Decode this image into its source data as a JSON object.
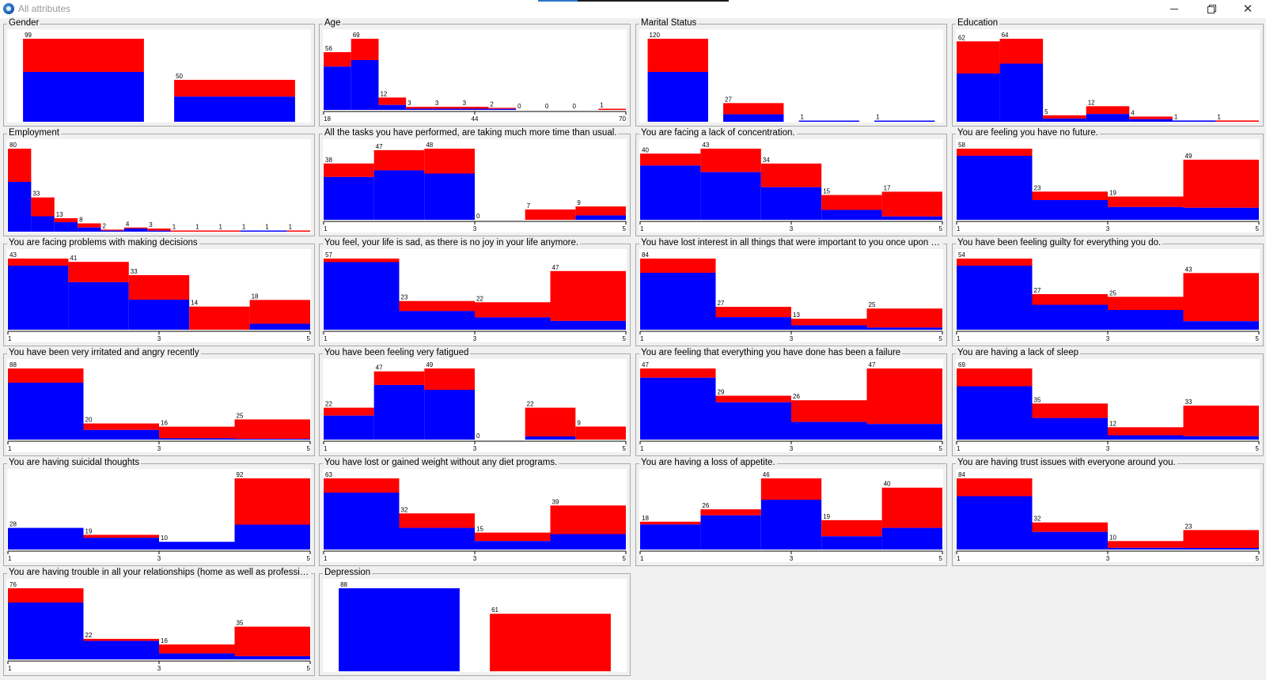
{
  "window": {
    "title": "All attributes"
  },
  "colors": {
    "series_a": "#0000ff",
    "series_b": "#ff0000"
  },
  "chart_data": [
    {
      "title": "Gender",
      "type": "bar",
      "stacked": true,
      "values": [
        99,
        50
      ],
      "fractions": [
        0.6,
        0.6
      ],
      "xticks": []
    },
    {
      "title": "Age",
      "type": "bar",
      "stacked": true,
      "values": [
        56,
        69,
        12,
        3,
        3,
        3,
        2,
        0,
        0,
        0,
        1
      ],
      "fractions": [
        0.75,
        0.7,
        0.4,
        0.4,
        0.4,
        0.4,
        0.5,
        0,
        0,
        0,
        0
      ],
      "xticks": [
        "18",
        "44",
        "70"
      ]
    },
    {
      "title": "Marital Status",
      "type": "bar",
      "stacked": true,
      "values": [
        120,
        27,
        1,
        1
      ],
      "fractions": [
        0.6,
        0.4,
        1,
        1
      ],
      "xticks": []
    },
    {
      "title": "Education",
      "type": "bar",
      "stacked": true,
      "values": [
        62,
        64,
        5,
        12,
        4,
        1,
        1
      ],
      "fractions": [
        0.6,
        0.7,
        0.5,
        0.5,
        0.5,
        1,
        0
      ],
      "xticks": []
    },
    {
      "title": "Employment",
      "type": "bar",
      "stacked": true,
      "values": [
        80,
        33,
        13,
        8,
        2,
        4,
        3,
        1,
        1,
        1,
        1,
        1,
        1
      ],
      "fractions": [
        0.6,
        0.45,
        0.7,
        0.5,
        0.5,
        0.75,
        0.33,
        0,
        0,
        0,
        1,
        1,
        0
      ],
      "xticks": []
    },
    {
      "title": "All the tasks you have performed, are taking much more time than usual.",
      "type": "bar",
      "stacked": true,
      "values": [
        38,
        47,
        48,
        0,
        7,
        9
      ],
      "fractions": [
        0.76,
        0.71,
        0.65,
        0,
        0,
        0.33
      ],
      "xticks": [
        "1",
        "3",
        "5"
      ]
    },
    {
      "title": "You are facing a lack of concentration.",
      "type": "bar",
      "stacked": true,
      "values": [
        40,
        43,
        34,
        15,
        17
      ],
      "fractions": [
        0.82,
        0.67,
        0.58,
        0.4,
        0.12
      ],
      "xticks": [
        "1",
        "3",
        "5"
      ]
    },
    {
      "title": "You are feeling you have no future.",
      "type": "bar",
      "stacked": true,
      "values": [
        58,
        23,
        19,
        49
      ],
      "fractions": [
        0.9,
        0.7,
        0.55,
        0.2
      ],
      "xticks": [
        "1",
        "3",
        "5"
      ]
    },
    {
      "title": "You are facing problems with making decisions",
      "type": "bar",
      "stacked": true,
      "values": [
        43,
        41,
        33,
        14,
        18
      ],
      "fractions": [
        0.9,
        0.7,
        0.55,
        0,
        0.2
      ],
      "xticks": [
        "1",
        "3",
        "5"
      ]
    },
    {
      "title": "You feel, your life is sad, as there is no joy in your life anymore.",
      "type": "bar",
      "stacked": true,
      "values": [
        57,
        23,
        22,
        47
      ],
      "fractions": [
        0.95,
        0.65,
        0.45,
        0.15
      ],
      "xticks": [
        "1",
        "3",
        "5"
      ]
    },
    {
      "title": "You have lost interest in all things that were important to you once upon a ti...",
      "type": "bar",
      "stacked": true,
      "values": [
        84,
        27,
        13,
        25
      ],
      "fractions": [
        0.8,
        0.55,
        0.4,
        0.1
      ],
      "xticks": [
        "1",
        "3",
        "5"
      ]
    },
    {
      "title": "You have been feeling guilty for everything you do.",
      "type": "bar",
      "stacked": true,
      "values": [
        54,
        27,
        25,
        43
      ],
      "fractions": [
        0.9,
        0.7,
        0.6,
        0.15
      ],
      "xticks": [
        "1",
        "3",
        "5"
      ]
    },
    {
      "title": "You have been very irritated and angry recently",
      "type": "bar",
      "stacked": true,
      "values": [
        88,
        20,
        16,
        25
      ],
      "fractions": [
        0.8,
        0.6,
        0.1,
        0.04
      ],
      "xticks": [
        "1",
        "3",
        "5"
      ]
    },
    {
      "title": "You have been feeling very fatigued",
      "type": "bar",
      "stacked": true,
      "values": [
        22,
        47,
        49,
        0,
        22,
        9
      ],
      "fractions": [
        0.75,
        0.8,
        0.7,
        0,
        0.1,
        0
      ],
      "xticks": [
        "1",
        "3",
        "5"
      ]
    },
    {
      "title": "You are feeling that everything you have done has been a failure",
      "type": "bar",
      "stacked": true,
      "values": [
        47,
        29,
        26,
        47
      ],
      "fractions": [
        0.87,
        0.85,
        0.45,
        0.22
      ],
      "xticks": [
        "1",
        "3",
        "5"
      ]
    },
    {
      "title": "You are having a lack of sleep",
      "type": "bar",
      "stacked": true,
      "values": [
        69,
        35,
        12,
        33
      ],
      "fractions": [
        0.75,
        0.6,
        0.35,
        0.1
      ],
      "xticks": [
        "1",
        "3",
        "5"
      ]
    },
    {
      "title": "You are having suicidal thoughts",
      "type": "bar",
      "stacked": true,
      "values": [
        28,
        19,
        10,
        92
      ],
      "fractions": [
        1,
        0.8,
        1,
        0.35
      ],
      "xticks": [
        "1",
        "3",
        "5"
      ]
    },
    {
      "title": "You have lost or gained weight without any diet programs.",
      "type": "bar",
      "stacked": true,
      "values": [
        63,
        32,
        15,
        39
      ],
      "fractions": [
        0.8,
        0.6,
        0.5,
        0.35
      ],
      "xticks": [
        "1",
        "3",
        "5"
      ]
    },
    {
      "title": "You are having a loss of appetite.",
      "type": "bar",
      "stacked": true,
      "values": [
        18,
        26,
        46,
        19,
        40
      ],
      "fractions": [
        0.9,
        0.85,
        0.7,
        0.45,
        0.35
      ],
      "xticks": [
        "1",
        "3",
        "5"
      ]
    },
    {
      "title": "You are having trust issues with everyone around you.",
      "type": "bar",
      "stacked": true,
      "values": [
        84,
        32,
        10,
        23
      ],
      "fractions": [
        0.75,
        0.65,
        0.2,
        0.08
      ],
      "xticks": [
        "1",
        "3",
        "5"
      ]
    },
    {
      "title": "You are having trouble in all your relationships (home as well as professional)",
      "type": "bar",
      "stacked": true,
      "values": [
        76,
        22,
        16,
        35
      ],
      "fractions": [
        0.8,
        0.9,
        0.4,
        0.1
      ],
      "xticks": [
        "1",
        "3",
        "5"
      ]
    },
    {
      "title": "Depression",
      "type": "bar",
      "stacked": true,
      "values": [
        88,
        61
      ],
      "fractions": [
        1,
        0
      ],
      "xticks": []
    }
  ]
}
